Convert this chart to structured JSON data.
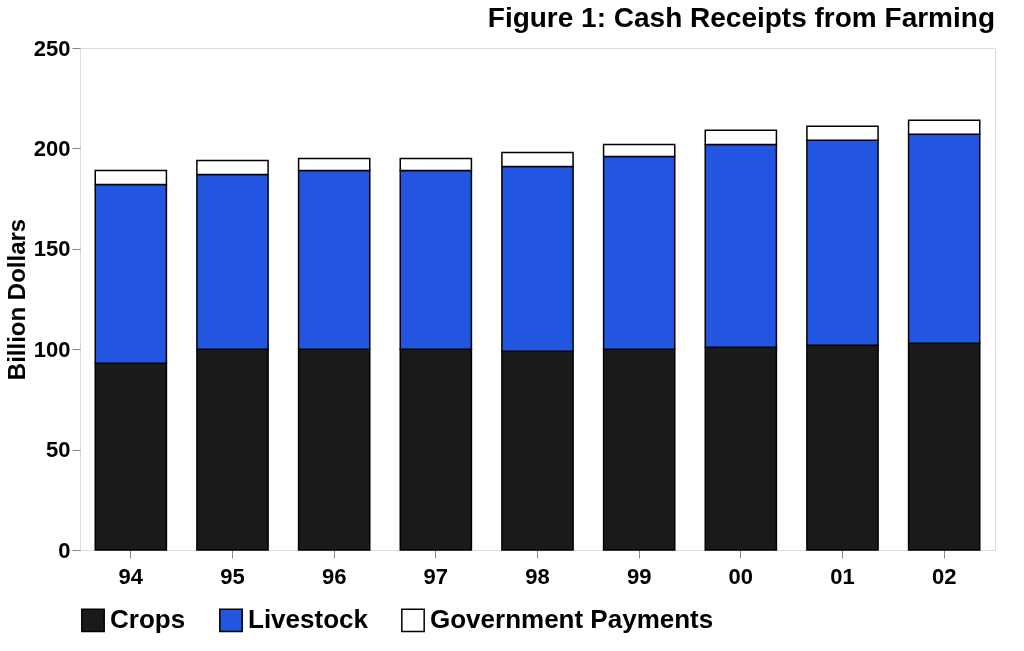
{
  "chart_data": {
    "type": "bar",
    "title": "Figure 1: Cash Receipts from Farming",
    "ylabel": "Billion Dollars",
    "categories": [
      "94",
      "95",
      "96",
      "97",
      "98",
      "99",
      "00",
      "01",
      "02"
    ],
    "stacked": true,
    "series": [
      {
        "name": "Crops",
        "color": "#1a1a1a",
        "values": [
          93,
          100,
          100,
          100,
          99,
          100,
          101,
          102,
          103
        ]
      },
      {
        "name": "Livestock",
        "color": "#2255e0",
        "values": [
          89,
          87,
          89,
          89,
          92,
          96,
          101,
          102,
          104
        ]
      },
      {
        "name": "Government Payments",
        "color": "#ffffff",
        "values": [
          7,
          7,
          6,
          6,
          7,
          6,
          7,
          7,
          7
        ]
      }
    ],
    "ylim": [
      0,
      250
    ],
    "yticks": [
      0,
      50,
      100,
      150,
      200,
      250
    ],
    "grid": false,
    "legend": "bottom"
  }
}
